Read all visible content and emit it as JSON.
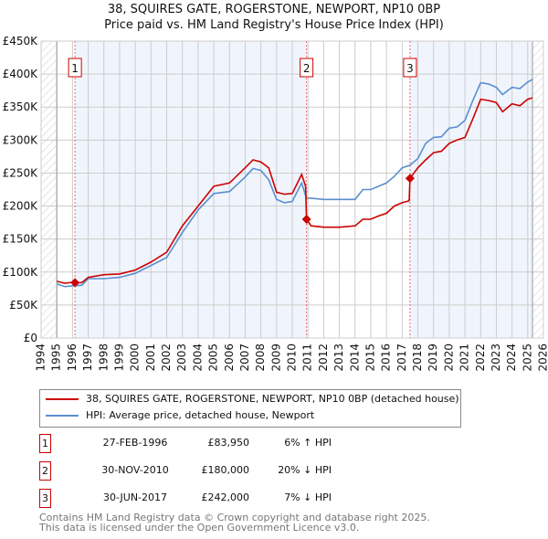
{
  "title_line1": "38, SQUIRES GATE, ROGERSTONE, NEWPORT, NP10 0BP",
  "title_line2": "Price paid vs. HM Land Registry's House Price Index (HPI)",
  "chart_data": {
    "type": "line",
    "xlim": [
      1994,
      2026
    ],
    "ylim": [
      0,
      450000
    ],
    "x_ticks": [
      "1994",
      "1995",
      "1996",
      "1997",
      "1998",
      "1999",
      "2000",
      "2001",
      "2002",
      "2003",
      "2004",
      "2005",
      "2006",
      "2007",
      "2008",
      "2009",
      "2010",
      "2011",
      "2012",
      "2013",
      "2014",
      "2015",
      "2016",
      "2017",
      "2018",
      "2019",
      "2020",
      "2021",
      "2022",
      "2023",
      "2024",
      "2025",
      "2026"
    ],
    "y_ticks": [
      {
        "v": 0,
        "label": "£0"
      },
      {
        "v": 50000,
        "label": "£50K"
      },
      {
        "v": 100000,
        "label": "£100K"
      },
      {
        "v": 150000,
        "label": "£150K"
      },
      {
        "v": 200000,
        "label": "£200K"
      },
      {
        "v": 250000,
        "label": "£250K"
      },
      {
        "v": 300000,
        "label": "£300K"
      },
      {
        "v": 350000,
        "label": "£350K"
      },
      {
        "v": 400000,
        "label": "£400K"
      },
      {
        "v": 450000,
        "label": "£450K"
      }
    ],
    "grid": true,
    "data_range": [
      1995,
      2025.3
    ],
    "series": [
      {
        "name": "38, SQUIRES GATE, ROGERSTONE, NEWPORT, NP10 0BP (detached house)",
        "color": "#cc0000",
        "x": [
          1995,
          1995.5,
          1996,
          1996.16,
          1996.6,
          1997,
          1998,
          1999,
          2000,
          2001,
          2002,
          2003,
          2004,
          2005,
          2006,
          2007,
          2007.5,
          2008,
          2008.5,
          2009,
          2009.5,
          2010,
          2010.6,
          2010.85,
          2010.91,
          2011.2,
          2012,
          2013,
          2014,
          2014.5,
          2015,
          2015.5,
          2016,
          2016.5,
          2017,
          2017.45,
          2017.5,
          2018,
          2018.5,
          2019,
          2019.5,
          2020,
          2020.5,
          2021,
          2021.5,
          2022,
          2022.5,
          2023,
          2023.4,
          2024,
          2024.5,
          2025,
          2025.3
        ],
        "y": [
          86000,
          83000,
          84500,
          83950,
          84000,
          92000,
          96000,
          97000,
          103000,
          115000,
          130000,
          170000,
          200000,
          230000,
          235000,
          258000,
          270000,
          267000,
          258000,
          221000,
          218000,
          219000,
          248000,
          230000,
          180000,
          170000,
          168000,
          168000,
          170000,
          180000,
          180000,
          185000,
          189000,
          200000,
          205000,
          208000,
          242000,
          258000,
          270000,
          281000,
          283000,
          295000,
          300000,
          304000,
          332000,
          362000,
          360000,
          357000,
          343000,
          355000,
          352000,
          362000,
          364000
        ]
      },
      {
        "name": "HPI: Average price, detached house, Newport",
        "color": "#5b8fd0",
        "x": [
          1995,
          1995.5,
          1996,
          1996.6,
          1997,
          1998,
          1999,
          2000,
          2001,
          2002,
          2003,
          2004,
          2005,
          2006,
          2007,
          2007.5,
          2008,
          2008.5,
          2009,
          2009.5,
          2010,
          2010.6,
          2010.9,
          2011.2,
          2012,
          2013,
          2014,
          2014.5,
          2015,
          2015.5,
          2016,
          2016.5,
          2017,
          2017.5,
          2018,
          2018.5,
          2019,
          2019.5,
          2020,
          2020.5,
          2021,
          2021.5,
          2022,
          2022.5,
          2023,
          2023.4,
          2024,
          2024.5,
          2025,
          2025.3
        ],
        "y": [
          82000,
          78000,
          79000,
          80000,
          90000,
          90000,
          92000,
          98000,
          110000,
          122000,
          160000,
          194000,
          219000,
          222000,
          244000,
          257000,
          254000,
          240000,
          210000,
          205000,
          207000,
          235000,
          212000,
          212000,
          210000,
          210000,
          210000,
          225000,
          225000,
          230000,
          235000,
          245000,
          258000,
          262000,
          272000,
          295000,
          304000,
          305000,
          318000,
          320000,
          330000,
          360000,
          387000,
          385000,
          380000,
          369000,
          380000,
          378000,
          388000,
          392000
        ]
      }
    ],
    "sales": [
      {
        "label": "1",
        "x": 1996.16,
        "y": 83950
      },
      {
        "label": "2",
        "x": 2010.91,
        "y": 180000
      },
      {
        "label": "3",
        "x": 2017.5,
        "y": 242000
      }
    ]
  },
  "legend": {
    "property": "38, SQUIRES GATE, ROGERSTONE, NEWPORT, NP10 0BP (detached house)",
    "hpi": "HPI: Average price, detached house, Newport"
  },
  "transactions": [
    {
      "num": "1",
      "date": "27-FEB-1996",
      "price": "£83,950",
      "hpi": "6% ↑ HPI"
    },
    {
      "num": "2",
      "date": "30-NOV-2010",
      "price": "£180,000",
      "hpi": "20% ↓ HPI"
    },
    {
      "num": "3",
      "date": "30-JUN-2017",
      "price": "£242,000",
      "hpi": "7% ↓ HPI"
    }
  ],
  "footer_line1": "Contains HM Land Registry data © Crown copyright and database right 2025.",
  "footer_line2": "This data is licensed under the Open Government Licence v3.0."
}
